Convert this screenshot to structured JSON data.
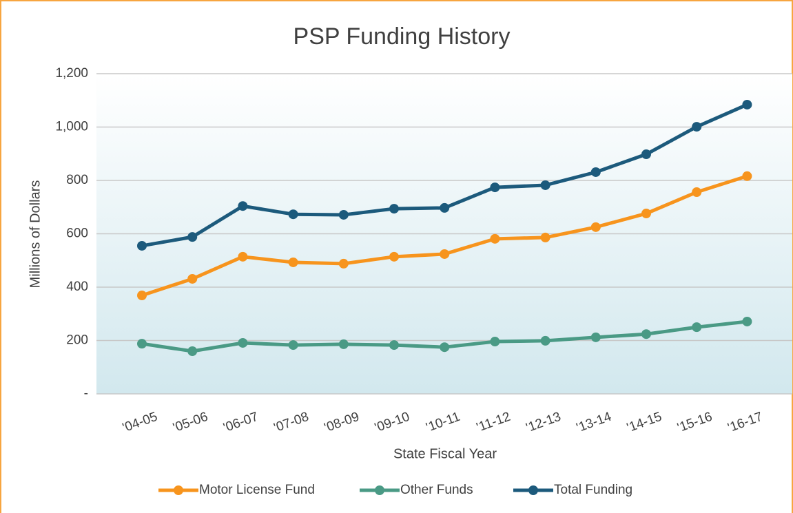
{
  "chart_data": {
    "type": "line",
    "title": "PSP Funding History",
    "x_label": "State Fiscal Year",
    "y_label": "Millions of Dollars",
    "categories": [
      "'04-05",
      "'05-06",
      "'06-07",
      "'07-08",
      "'08-09",
      "'09-10",
      "'10-11",
      "'11-12",
      "'12-13",
      "'13-14",
      "'14-15",
      "'15-16",
      "'16-17"
    ],
    "series": [
      {
        "name": "Motor License Fund",
        "color": "#f7941d",
        "values": [
          369,
          431,
          514,
          493,
          488,
          514,
          524,
          581,
          586,
          625,
          676,
          756,
          816
        ]
      },
      {
        "name": "Other Funds",
        "color": "#4a9a85",
        "values": [
          188,
          160,
          191,
          183,
          186,
          183,
          175,
          196,
          199,
          212,
          224,
          250,
          271
        ]
      },
      {
        "name": "Total Funding",
        "color": "#1c5a7c",
        "values": [
          555,
          588,
          704,
          673,
          671,
          694,
          697,
          774,
          782,
          831,
          898,
          1001,
          1084
        ]
      }
    ],
    "ylim": [
      0,
      1200
    ],
    "yticks": [
      {
        "value": 0,
        "label": "-"
      },
      200,
      400,
      600,
      800,
      {
        "value": 1000,
        "label": "1,000"
      },
      {
        "value": 1200,
        "label": "1,200"
      }
    ],
    "grid": true,
    "legend": "bottom"
  }
}
